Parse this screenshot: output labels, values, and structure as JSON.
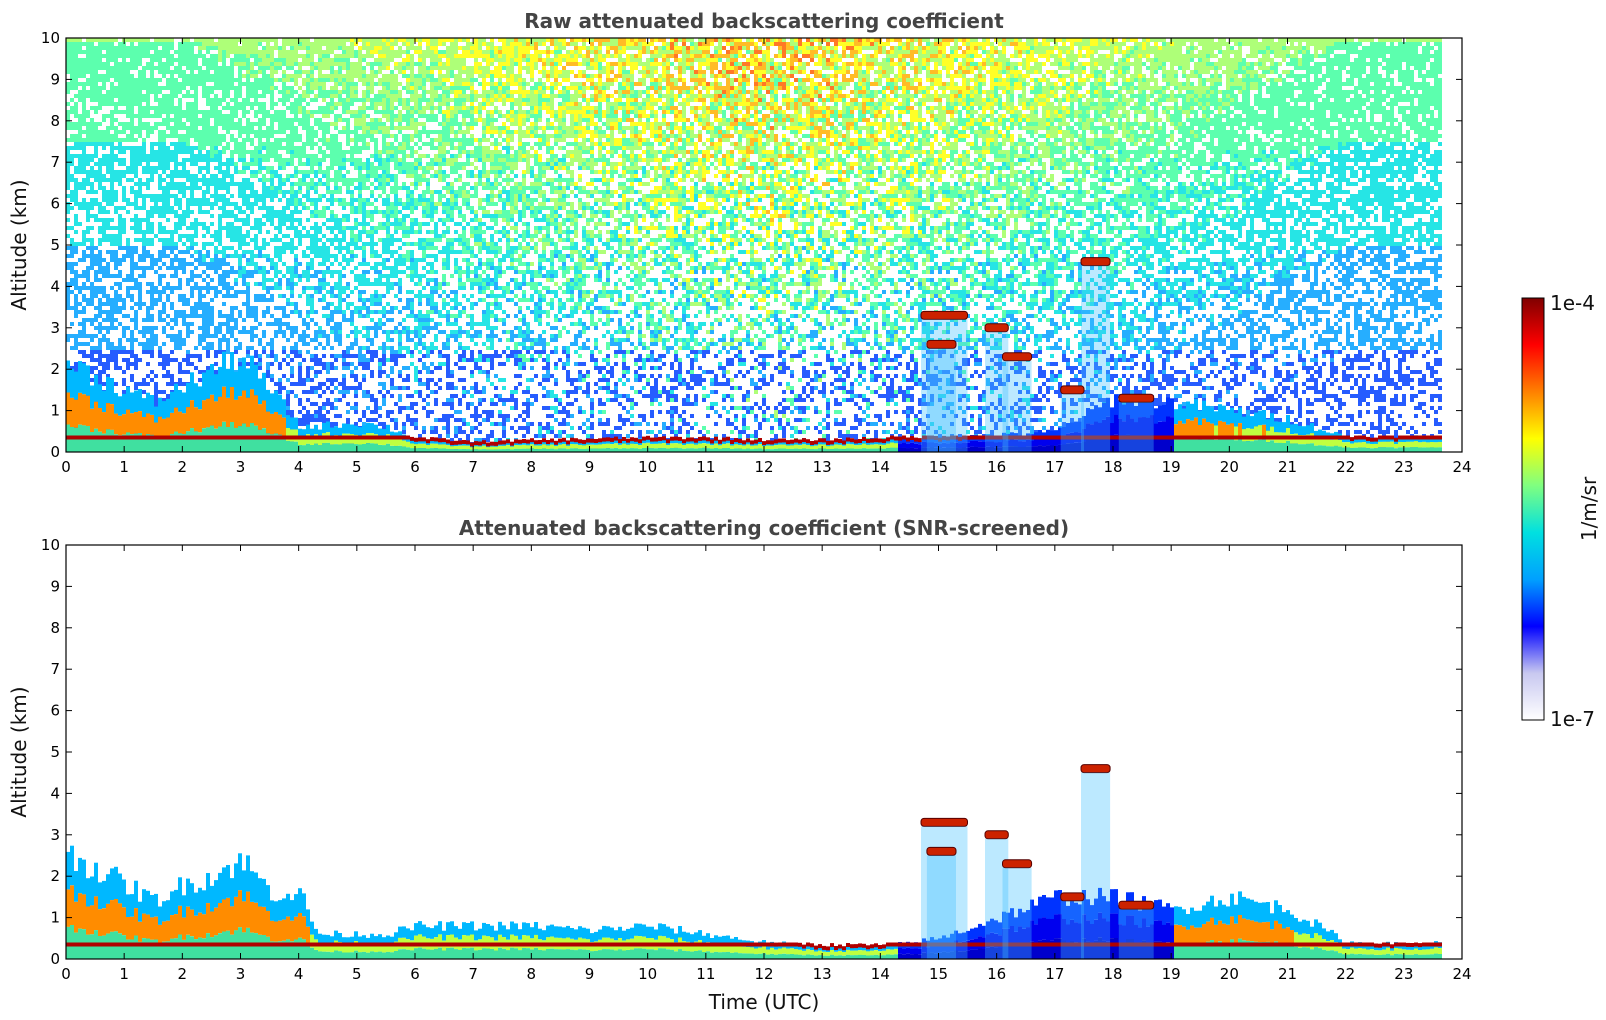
{
  "chart_data": [
    {
      "type": "heatmap",
      "title": "Raw attenuated backscattering coefficient",
      "xlabel": "",
      "ylabel": "Altitude (km)",
      "xlim": [
        0,
        24
      ],
      "ylim": [
        0,
        10
      ],
      "xticks": [
        "0",
        "1",
        "2",
        "3",
        "4",
        "5",
        "6",
        "7",
        "8",
        "9",
        "10",
        "11",
        "12",
        "13",
        "14",
        "15",
        "16",
        "17",
        "18",
        "19",
        "20",
        "21",
        "22",
        "23",
        "24"
      ],
      "yticks": [
        "0",
        "1",
        "2",
        "3",
        "4",
        "5",
        "6",
        "7",
        "8",
        "9",
        "10"
      ],
      "data_end_time": 23.65,
      "boundary_layer_top_km": [
        [
          0.0,
          2.2
        ],
        [
          0.5,
          1.8
        ],
        [
          1.0,
          1.5
        ],
        [
          1.5,
          1.2
        ],
        [
          2.0,
          1.6
        ],
        [
          2.5,
          2.0
        ],
        [
          3.0,
          2.3
        ],
        [
          3.5,
          1.5
        ],
        [
          4.0,
          0.6
        ],
        [
          5.0,
          0.7
        ],
        [
          5.5,
          0.6
        ],
        [
          6.0,
          0.3
        ],
        [
          7.0,
          0.2
        ],
        [
          8.0,
          0.25
        ],
        [
          10.0,
          0.3
        ],
        [
          11.0,
          0.3
        ],
        [
          12.0,
          0.25
        ],
        [
          13.0,
          0.25
        ],
        [
          14.0,
          0.3
        ],
        [
          15.0,
          0.35
        ],
        [
          16.0,
          0.4
        ],
        [
          17.0,
          0.5
        ],
        [
          18.0,
          1.3
        ],
        [
          19.0,
          1.2
        ],
        [
          20.0,
          1.0
        ],
        [
          21.0,
          0.8
        ],
        [
          22.0,
          0.35
        ],
        [
          23.0,
          0.35
        ],
        [
          23.65,
          0.4
        ]
      ],
      "cloud_features": [
        {
          "time_start": 17.45,
          "time_end": 17.95,
          "altitude_km": 4.6
        },
        {
          "time_start": 14.7,
          "time_end": 15.5,
          "altitude_km": 3.3
        },
        {
          "time_start": 14.8,
          "time_end": 15.3,
          "altitude_km": 2.6
        },
        {
          "time_start": 15.8,
          "time_end": 16.2,
          "altitude_km": 3.0
        },
        {
          "time_start": 16.1,
          "time_end": 16.6,
          "altitude_km": 2.3
        },
        {
          "time_start": 17.1,
          "time_end": 17.5,
          "altitude_km": 1.5
        },
        {
          "time_start": 18.1,
          "time_end": 18.7,
          "altitude_km": 1.3
        }
      ],
      "upper_signal": "noisy, strongest 7–17 UTC above 6 km"
    },
    {
      "type": "heatmap",
      "title": "Attenuated backscattering coefficient (SNR-screened)",
      "xlabel": "Time (UTC)",
      "ylabel": "Altitude (km)",
      "xlim": [
        0,
        24
      ],
      "ylim": [
        0,
        10
      ],
      "xticks": [
        "0",
        "1",
        "2",
        "3",
        "4",
        "5",
        "6",
        "7",
        "8",
        "9",
        "10",
        "11",
        "12",
        "13",
        "14",
        "15",
        "16",
        "17",
        "18",
        "19",
        "20",
        "21",
        "22",
        "23",
        "24"
      ],
      "yticks": [
        "0",
        "1",
        "2",
        "3",
        "4",
        "5",
        "6",
        "7",
        "8",
        "9",
        "10"
      ],
      "data_end_time": 23.65,
      "boundary_layer_top_km": [
        [
          0.0,
          2.5
        ],
        [
          0.5,
          2.2
        ],
        [
          1.0,
          1.8
        ],
        [
          1.5,
          1.4
        ],
        [
          2.0,
          1.8
        ],
        [
          2.5,
          2.0
        ],
        [
          3.0,
          2.4
        ],
        [
          3.5,
          1.6
        ],
        [
          4.0,
          1.6
        ],
        [
          4.3,
          0.6
        ],
        [
          5.0,
          0.6
        ],
        [
          5.5,
          0.6
        ],
        [
          6.0,
          0.8
        ],
        [
          7.0,
          0.8
        ],
        [
          8.0,
          0.8
        ],
        [
          9.0,
          0.7
        ],
        [
          10.0,
          0.8
        ],
        [
          11.0,
          0.6
        ],
        [
          12.0,
          0.4
        ],
        [
          13.0,
          0.3
        ],
        [
          14.0,
          0.3
        ],
        [
          15.0,
          0.5
        ],
        [
          16.0,
          1.0
        ],
        [
          17.0,
          1.5
        ],
        [
          18.0,
          1.5
        ],
        [
          19.0,
          1.2
        ],
        [
          20.0,
          1.5
        ],
        [
          21.0,
          1.2
        ],
        [
          22.0,
          0.4
        ],
        [
          23.0,
          0.35
        ],
        [
          23.65,
          0.4
        ]
      ],
      "cloud_features": [
        {
          "time_start": 17.45,
          "time_end": 17.95,
          "altitude_km": 4.6
        },
        {
          "time_start": 14.7,
          "time_end": 15.5,
          "altitude_km": 3.3
        },
        {
          "time_start": 14.8,
          "time_end": 15.3,
          "altitude_km": 2.6
        },
        {
          "time_start": 15.8,
          "time_end": 16.2,
          "altitude_km": 3.0
        },
        {
          "time_start": 16.1,
          "time_end": 16.6,
          "altitude_km": 2.3
        },
        {
          "time_start": 17.1,
          "time_end": 17.5,
          "altitude_km": 1.5
        },
        {
          "time_start": 18.1,
          "time_end": 18.7,
          "altitude_km": 1.3
        }
      ]
    }
  ],
  "colorbar": {
    "label": "1/m/sr",
    "max_label": "1e-4",
    "min_label": "1e-7",
    "scale": "log",
    "colors": [
      "#ffffff",
      "#c8c8f0",
      "#0000ff",
      "#00a0ff",
      "#00e0e0",
      "#80ff80",
      "#ffff00",
      "#ff8000",
      "#ff0000",
      "#800000"
    ]
  }
}
